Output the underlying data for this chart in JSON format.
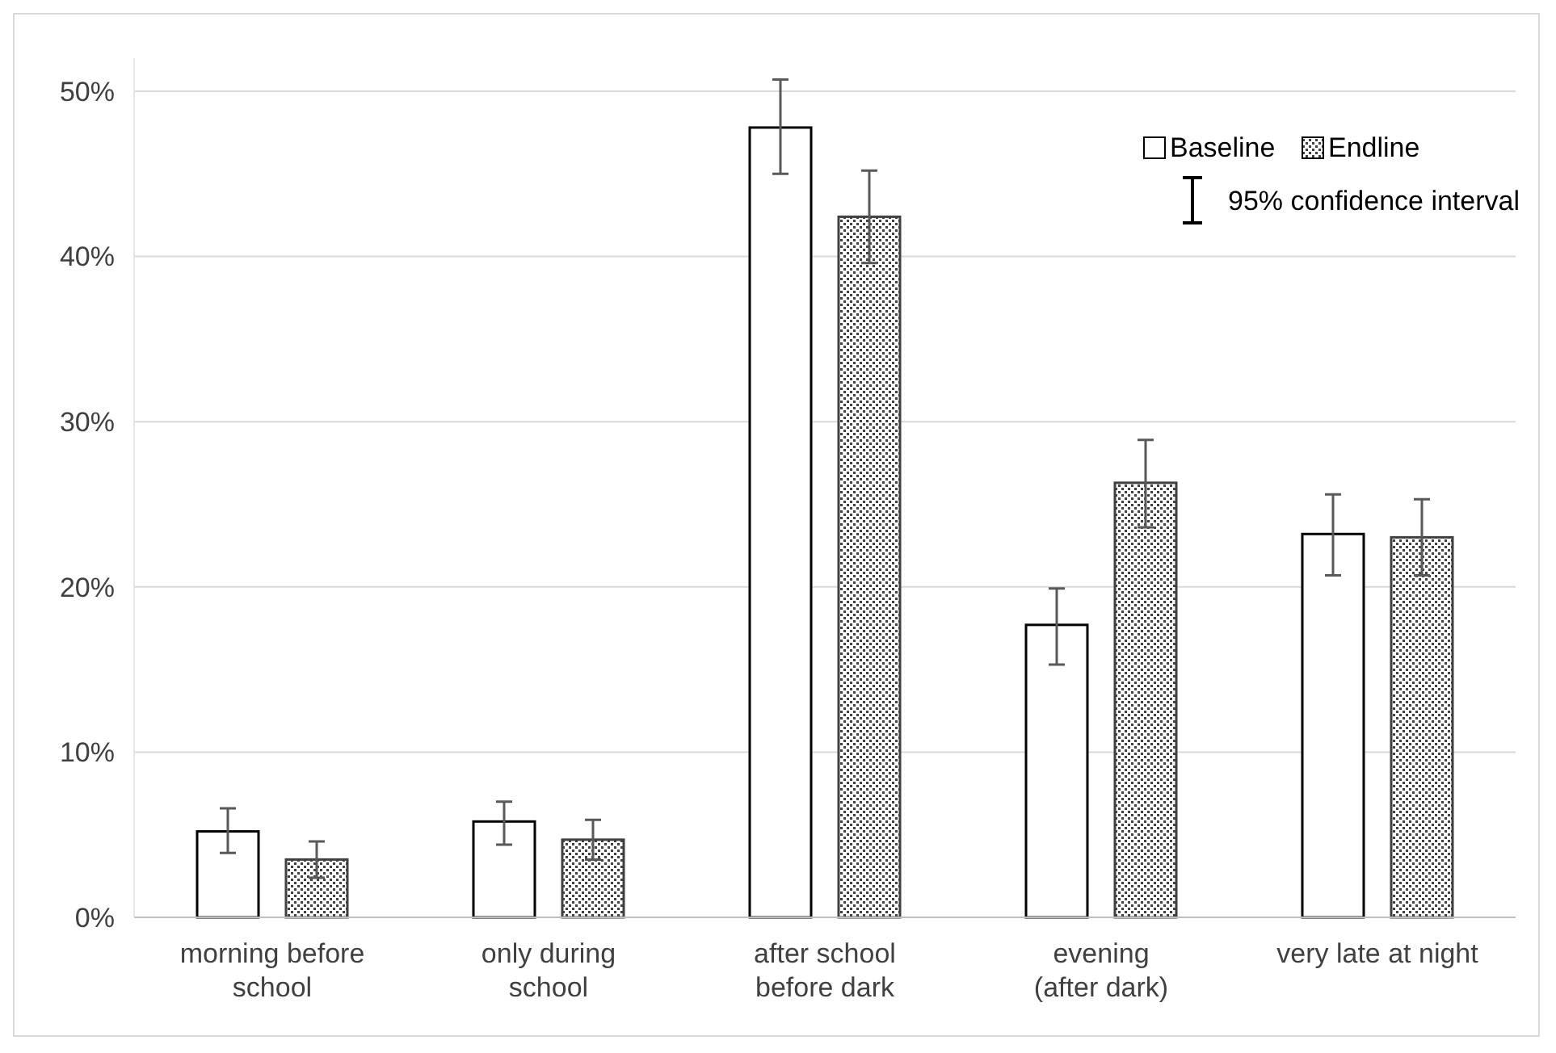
{
  "chart_data": {
    "type": "bar",
    "categories": [
      "morning before\nschool",
      "only during\nschool",
      "after school\nbefore dark",
      "evening\n(after dark)",
      "very late at night"
    ],
    "series": [
      {
        "name": "Baseline",
        "color": "#ffffff",
        "values": [
          5.2,
          5.8,
          47.8,
          17.7,
          23.2
        ],
        "errors": [
          [
            3.9,
            6.6
          ],
          [
            4.4,
            7.0
          ],
          [
            45.0,
            50.7
          ],
          [
            15.3,
            19.9
          ],
          [
            20.7,
            25.6
          ]
        ]
      },
      {
        "name": "Endline",
        "color": "#404040",
        "values": [
          3.5,
          4.7,
          42.4,
          26.3,
          23.0
        ],
        "errors": [
          [
            2.4,
            4.6
          ],
          [
            3.5,
            5.9
          ],
          [
            39.6,
            45.2
          ],
          [
            23.6,
            28.9
          ],
          [
            20.7,
            25.3
          ]
        ]
      }
    ],
    "ylim": [
      0,
      52
    ],
    "yticks": [
      {
        "value": 0,
        "label": "0%"
      },
      {
        "value": 10,
        "label": "10%"
      },
      {
        "value": 20,
        "label": "20%"
      },
      {
        "value": 30,
        "label": "30%"
      },
      {
        "value": 40,
        "label": "40%"
      },
      {
        "value": 50,
        "label": "50%"
      }
    ],
    "grid": "y",
    "legend": "top right",
    "annotations": [
      "95% confidence interval"
    ]
  }
}
